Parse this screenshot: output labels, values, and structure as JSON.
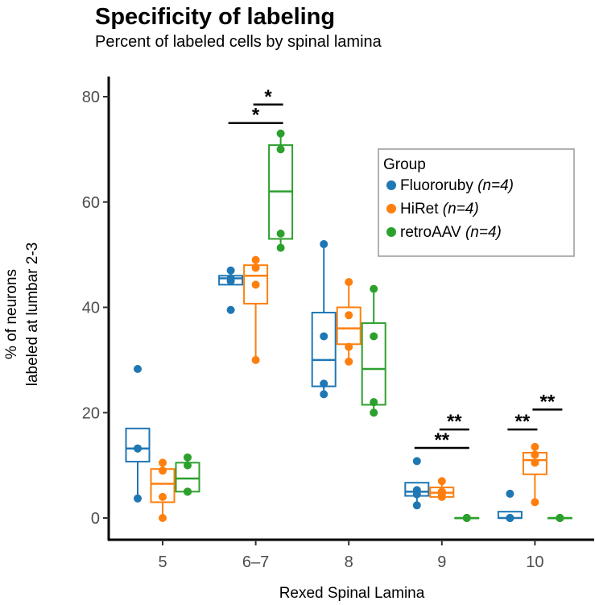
{
  "chart_data": {
    "type": "box",
    "title": "Specificity of labeling",
    "subtitle": "Percent of labeled cells by spinal lamina",
    "xlabel": "Rexed Spinal Lamina",
    "ylabel_lines": [
      "% of neurons",
      "labeled at lumbar 2-3"
    ],
    "categories": [
      "5",
      "6–7",
      "8",
      "9",
      "10"
    ],
    "ylim": [
      0,
      80
    ],
    "yticks": [
      0,
      20,
      40,
      60,
      80
    ],
    "legend": {
      "title": "Group",
      "placement": "top-right"
    },
    "series": [
      {
        "name": "Fluororuby",
        "n_label": "(n=4)",
        "color": "#1f77b4",
        "boxes": [
          {
            "q1": 10.7,
            "median": 13.2,
            "q3": 17,
            "wlo": 3.7,
            "whi": 17,
            "points": [
              28.3,
              13.2,
              13.2,
              3.7
            ]
          },
          {
            "q1": 44.3,
            "median": 45.5,
            "q3": 46,
            "wlo": 44.3,
            "whi": 47,
            "points": [
              47,
              45.5,
              45,
              39.5
            ]
          },
          {
            "q1": 25,
            "median": 30,
            "q3": 39,
            "wlo": 23.5,
            "whi": 52,
            "points": [
              52,
              34.5,
              25.5,
              23.5
            ]
          },
          {
            "q1": 4.2,
            "median": 5,
            "q3": 6.7,
            "wlo": 2.4,
            "whi": 6.7,
            "points": [
              10.8,
              5.3,
              4.5,
              2.4
            ]
          },
          {
            "q1": 0,
            "median": 0,
            "q3": 1.2,
            "wlo": 0,
            "whi": 1.2,
            "points": [
              4.6,
              0,
              0,
              0
            ]
          }
        ]
      },
      {
        "name": "HiRet",
        "n_label": "(n=4)",
        "color": "#ff7f0e",
        "boxes": [
          {
            "q1": 3,
            "median": 6.5,
            "q3": 9.3,
            "wlo": 0,
            "whi": 10.5,
            "points": [
              10.5,
              9,
              4,
              0
            ]
          },
          {
            "q1": 40.7,
            "median": 46,
            "q3": 48,
            "wlo": 30,
            "whi": 49,
            "points": [
              49,
              47.5,
              44.3,
              30
            ]
          },
          {
            "q1": 33,
            "median": 36,
            "q3": 40,
            "wlo": 29.7,
            "whi": 44.8,
            "points": [
              44.8,
              38.5,
              32.5,
              29.7
            ]
          },
          {
            "q1": 4,
            "median": 4.8,
            "q3": 5.8,
            "wlo": 4,
            "whi": 7,
            "points": [
              7,
              5,
              4.5,
              4
            ]
          },
          {
            "q1": 8.3,
            "median": 11,
            "q3": 12.4,
            "wlo": 3,
            "whi": 13.5,
            "points": [
              13.5,
              12,
              10.5,
              3
            ]
          }
        ]
      },
      {
        "name": "retroAAV",
        "n_label": "(n=4)",
        "color": "#2ca02c",
        "boxes": [
          {
            "q1": 5,
            "median": 7.5,
            "q3": 10.5,
            "wlo": 5,
            "whi": 11.5,
            "points": [
              11.5,
              10,
              5,
              5
            ]
          },
          {
            "q1": 53,
            "median": 62,
            "q3": 70.8,
            "wlo": 51.3,
            "whi": 73,
            "points": [
              73,
              70,
              54,
              51.3
            ]
          },
          {
            "q1": 21.5,
            "median": 28.3,
            "q3": 37,
            "wlo": 20,
            "whi": 43.5,
            "points": [
              43.5,
              34.5,
              22,
              20
            ]
          },
          {
            "q1": 0,
            "median": 0,
            "q3": 0,
            "wlo": 0,
            "whi": 0,
            "points": [
              0,
              0,
              0,
              0
            ]
          },
          {
            "q1": 0,
            "median": 0,
            "q3": 0,
            "wlo": 0,
            "whi": 0,
            "points": [
              0,
              0,
              0,
              0
            ]
          }
        ]
      }
    ],
    "significance": [
      {
        "category": 1,
        "from": 0,
        "to": 2,
        "level": 75,
        "label": "*"
      },
      {
        "category": 1,
        "from": 1,
        "to": 2,
        "level": 78.5,
        "label": "*"
      },
      {
        "category": 3,
        "from": 0,
        "to": 2,
        "level": 13.3,
        "label": "**"
      },
      {
        "category": 3,
        "from": 1,
        "to": 2,
        "level": 16.8,
        "label": "**"
      },
      {
        "category": 4,
        "from": 0,
        "to": 1,
        "level": 16.8,
        "label": "**"
      },
      {
        "category": 4,
        "from": 1,
        "to": 2,
        "level": 20.6,
        "label": "**"
      }
    ]
  }
}
